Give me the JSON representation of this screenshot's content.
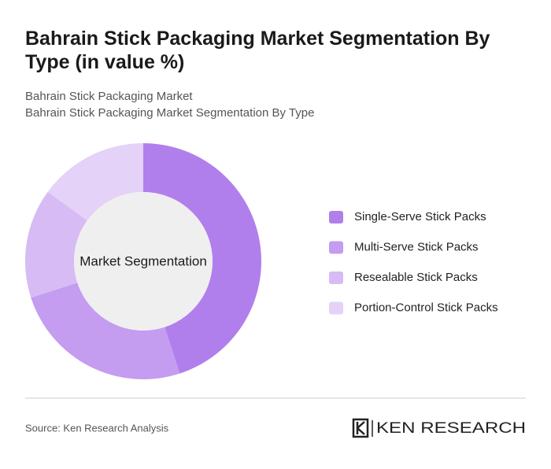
{
  "title": "Bahrain Stick Packaging Market Segmentation By Type (in value %)",
  "subtitle_lines": [
    "Bahrain Stick Packaging Market",
    "Bahrain Stick Packaging Market Segmentation By Type"
  ],
  "chart_data": {
    "type": "donut",
    "center_label": "Market Segmentation",
    "categories": [
      "Single-Serve Stick Packs",
      "Multi-Serve Stick Packs",
      "Resealable Stick Packs",
      "Portion-Control Stick Packs"
    ],
    "values": [
      45,
      25,
      15,
      15
    ],
    "colors": [
      "#b17fec",
      "#c49cf0",
      "#d7bbf4",
      "#e4d2f8"
    ]
  },
  "source": "Source: Ken Research Analysis",
  "logo": "KEN RESEARCH"
}
